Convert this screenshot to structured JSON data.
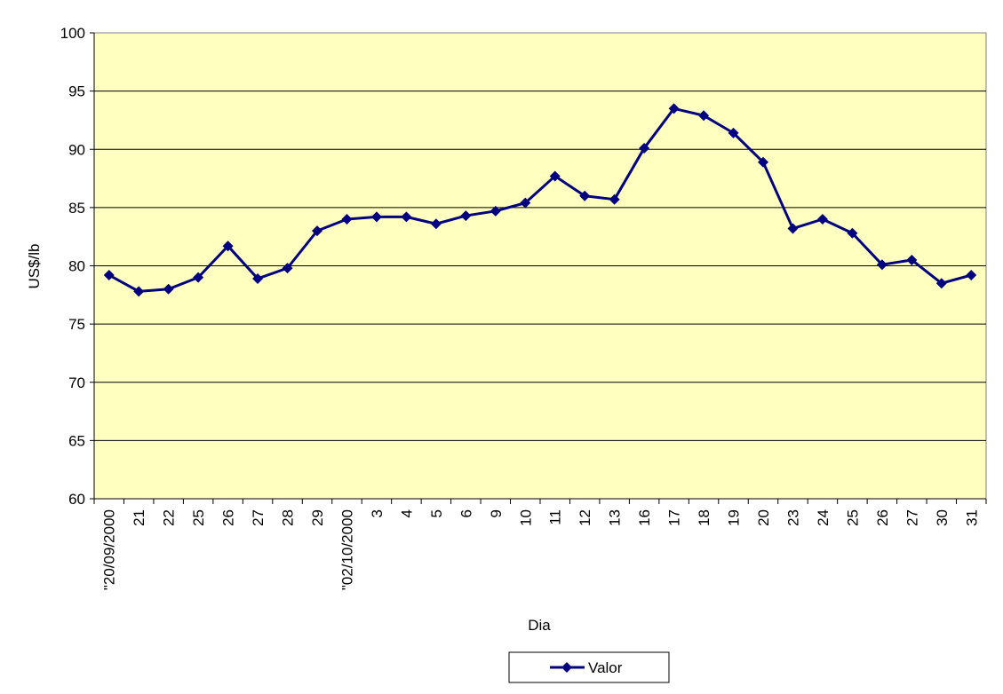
{
  "chart_data": {
    "type": "line",
    "xlabel": "Dia",
    "ylabel": "US$/lb",
    "ylim": [
      60,
      100
    ],
    "yticks": [
      60,
      65,
      70,
      75,
      80,
      85,
      90,
      95,
      100
    ],
    "grid": "horizontal",
    "legend_position": "bottom",
    "categories": [
      "\"20/09/2000",
      "21",
      "22",
      "25",
      "26",
      "27",
      "28",
      "29",
      "\"02/10/2000",
      "3",
      "4",
      "5",
      "6",
      "9",
      "10",
      "11",
      "12",
      "13",
      "16",
      "17",
      "18",
      "19",
      "20",
      "23",
      "24",
      "25",
      "26",
      "27",
      "30",
      "31"
    ],
    "series": [
      {
        "name": "Valor",
        "color": "#000080",
        "marker": "diamond",
        "values": [
          79.2,
          77.8,
          78.0,
          79.0,
          81.7,
          78.9,
          79.8,
          83.0,
          84.0,
          84.2,
          84.2,
          83.6,
          84.3,
          84.7,
          85.4,
          87.7,
          86.0,
          85.7,
          90.1,
          93.5,
          92.9,
          91.4,
          88.9,
          83.2,
          84.0,
          82.8,
          80.1,
          80.5,
          78.5,
          79.2
        ]
      }
    ]
  },
  "colors": {
    "plot_background": "#FFFFC0",
    "gridline": "#000000",
    "series_line": "#000080"
  }
}
